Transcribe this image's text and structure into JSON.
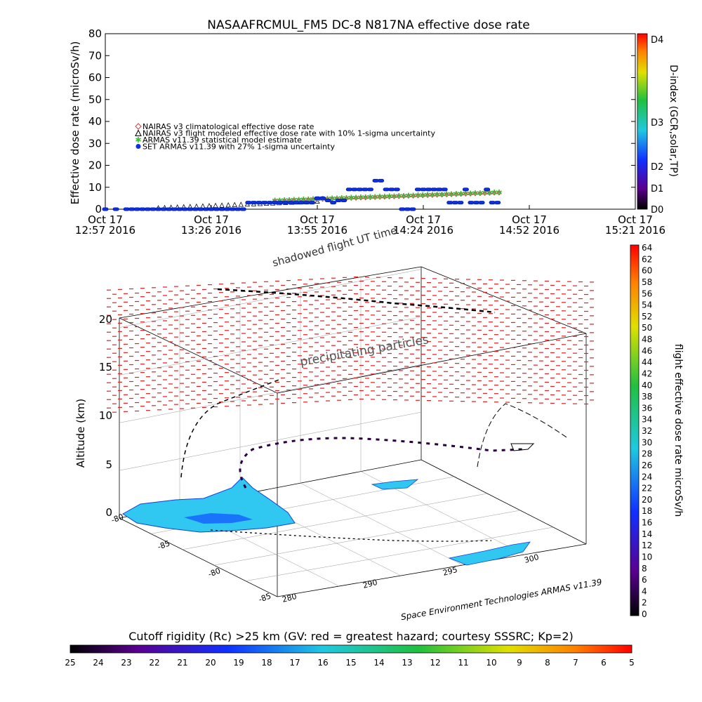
{
  "chart_data": [
    {
      "type": "scatter",
      "title": "NASAAFRCMUL_FM5 DC-8   N817NA effective dose rate",
      "ylabel": "Effective dose rate (microSv/h)",
      "ylim": [
        0,
        80
      ],
      "yticks": [
        "0",
        "10",
        "20",
        "30",
        "40",
        "50",
        "60",
        "70",
        "80"
      ],
      "xticks": [
        {
          "line1": "Oct 17",
          "line2": "12:57 2016"
        },
        {
          "line1": "Oct 17",
          "line2": "13:26 2016"
        },
        {
          "line1": "Oct 17",
          "line2": "13:55 2016"
        },
        {
          "line1": "Oct 17",
          "line2": "14:24 2016"
        },
        {
          "line1": "Oct 17",
          "line2": "14:52 2016"
        },
        {
          "line1": "Oct 17",
          "line2": "15:21 2016"
        }
      ],
      "xlabel_overlap": "shadowed flight UT time",
      "right_axis": {
        "label": "D-index (GCR,solar,TP)",
        "ticks": [
          "D0",
          "D1",
          "D2",
          "D3",
          "D4"
        ]
      },
      "legend": [
        {
          "text": "NAIRAS v3 climatological effective dose rate",
          "marker": "diamond",
          "color": "#d04040"
        },
        {
          "text": "NAIRAS v3 flight modeled effective dose rate with 10% 1-sigma uncertainty",
          "marker": "triangle",
          "color": "#000000"
        },
        {
          "text": "ARMAS v11.39 statistical model estimate",
          "marker": "star",
          "color": "#40c040"
        },
        {
          "text": "SET ARMAS v11.39 with 27% 1-sigma uncertainty",
          "marker": "circle",
          "color": "#1030e0"
        }
      ],
      "legend_position": "upper-left",
      "series": [
        {
          "x": [
            0.0,
            0.1,
            0.2,
            0.25,
            0.3,
            0.35,
            0.4,
            0.45,
            0.5,
            0.55,
            0.6,
            0.65,
            0.7,
            0.75,
            0.8,
            0.85,
            0.9,
            0.95,
            1.0,
            1.05,
            1.1,
            1.15,
            1.2,
            1.25,
            1.3,
            1.35,
            1.4,
            1.45,
            1.5,
            1.55,
            1.6,
            1.65,
            1.7,
            1.75,
            1.8,
            1.85,
            1.9,
            1.95,
            2.0,
            2.05,
            2.1,
            2.15,
            2.2,
            2.25,
            2.3,
            2.35,
            2.4,
            2.45,
            2.5,
            2.55,
            2.6,
            2.65,
            2.7,
            2.75,
            2.8,
            2.85,
            2.9,
            2.95,
            3.0,
            3.05,
            3.1,
            3.15,
            3.2,
            3.25,
            3.3,
            3.35,
            3.4,
            3.45,
            3.5,
            3.55,
            3.6,
            3.65,
            3.7
          ],
          "y": [
            0,
            0,
            0,
            0,
            0,
            0,
            0,
            0,
            0,
            0,
            0,
            0,
            0,
            0,
            0,
            0,
            0,
            0,
            0,
            0,
            0,
            0,
            0,
            0,
            0,
            3,
            3,
            3,
            3,
            3,
            3,
            3,
            3,
            3,
            3,
            3,
            3,
            3,
            5,
            5,
            4,
            3,
            4,
            4,
            9,
            9,
            9,
            9,
            9,
            13,
            13,
            9,
            9,
            9,
            0,
            0,
            0,
            9,
            9,
            9,
            9,
            9,
            9,
            3,
            3,
            3,
            9,
            3,
            3,
            3,
            9,
            3,
            3
          ]
        }
      ]
    },
    {
      "type": "scatter",
      "zlabel": "Altitude (km)",
      "zticks": [
        "0",
        "5",
        "10",
        "15",
        "20"
      ],
      "lat_ticks": [
        "-80",
        "-85",
        "-80",
        "-85"
      ],
      "lon_ticks": [
        "280",
        "290",
        "295",
        "300"
      ],
      "annotation_precip": "precipitating particles",
      "credit": "Space Environment Technologies ARMAS v11.39",
      "right_colorbar": {
        "label": "flight effective dose rate microSv/h",
        "ticks": [
          "0",
          "2",
          "4",
          "6",
          "8",
          "10",
          "12",
          "14",
          "16",
          "18",
          "20",
          "22",
          "24",
          "26",
          "28",
          "30",
          "32",
          "34",
          "36",
          "38",
          "40",
          "42",
          "44",
          "46",
          "48",
          "50",
          "52",
          "54",
          "56",
          "58",
          "60",
          "62",
          "64"
        ]
      },
      "bottom_colorbar": {
        "label": "Cutoff rigidity (Rc) >25 km (GV: red = greatest hazard; courtesy SSSRC; Kp=2)",
        "ticks": [
          "25",
          "24",
          "23",
          "22",
          "21",
          "20",
          "19",
          "18",
          "17",
          "16",
          "15",
          "14",
          "13",
          "12",
          "11",
          "10",
          "9",
          "8",
          "7",
          "6",
          "5"
        ]
      }
    }
  ]
}
